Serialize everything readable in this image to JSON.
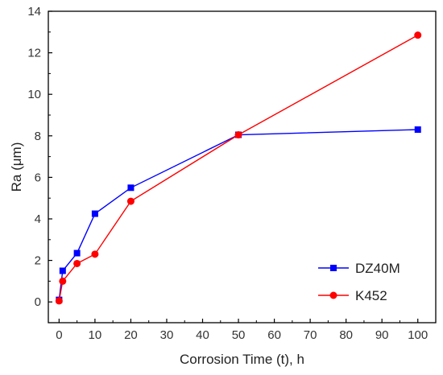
{
  "chart_data": {
    "type": "line",
    "xlabel": "Corrosion Time (t), h",
    "ylabel": "Ra (μm)",
    "xlim": [
      -3,
      105
    ],
    "ylim": [
      -1,
      14
    ],
    "x_ticks": [
      0,
      10,
      20,
      30,
      40,
      50,
      60,
      70,
      80,
      90,
      100
    ],
    "y_ticks": [
      0,
      2,
      4,
      6,
      8,
      10,
      12,
      14
    ],
    "grid": false,
    "legend_position": "bottom-right",
    "series": [
      {
        "name": "DZ40M",
        "color": "#0000ff",
        "marker": "square",
        "x": [
          0,
          1,
          5,
          10,
          20,
          50,
          100
        ],
        "y": [
          0.1,
          1.5,
          2.35,
          4.25,
          5.5,
          8.05,
          8.3
        ]
      },
      {
        "name": "K452",
        "color": "#ff0000",
        "marker": "circle",
        "x": [
          0,
          1,
          5,
          10,
          20,
          50,
          100
        ],
        "y": [
          0.05,
          1.0,
          1.85,
          2.3,
          4.85,
          8.05,
          12.85
        ]
      }
    ]
  }
}
